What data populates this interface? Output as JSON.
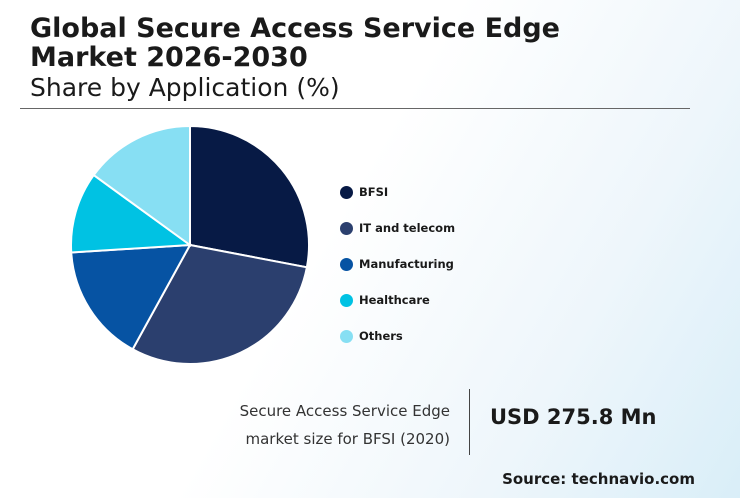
{
  "header": {
    "title": "Global Secure Access Service Edge Market 2026-2030",
    "subtitle": "Share by Application (%)"
  },
  "chart_data": {
    "type": "pie",
    "title": "Global Secure Access Service Edge Market 2026-2030",
    "subtitle": "Share by Application (%)",
    "categories": [
      "BFSI",
      "IT and telecom",
      "Manufacturing",
      "Healthcare",
      "Others"
    ],
    "values": [
      28,
      30,
      16,
      11,
      15
    ],
    "colors": [
      "#071a45",
      "#2b3f6e",
      "#0653a3",
      "#00c2e3",
      "#87dff3"
    ],
    "legend_position": "right"
  },
  "stat": {
    "label_line1": "Secure Access Service Edge",
    "label_line2": "market size for BFSI (2020)",
    "value": "USD 275.8 Mn"
  },
  "source": "Source: technavio.com"
}
